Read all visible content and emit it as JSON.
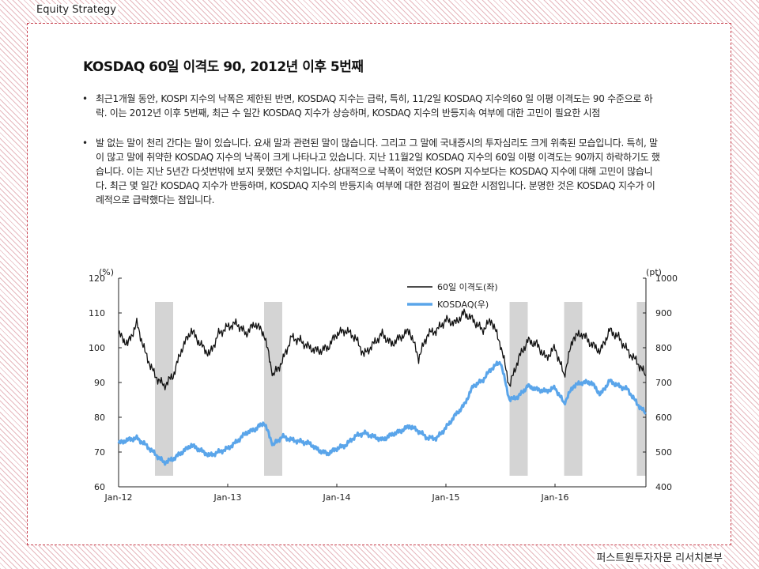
{
  "header": {
    "label": "Equity Strategy"
  },
  "slide": {
    "title": "KOSDAQ 60일 이격도 90, 2012년 이후 5번째",
    "bullets": [
      {
        "marker": "•",
        "text": "최근1개월 동안, KOSPI 지수의 낙폭은 제한된 반면, KOSDAQ 지수는 급락, 특히, 11/2일 KOSDAQ 지수의60 일 이평 이격도는 90 수준으로 하락. 이는 2012년 이후 5번째, 최근 수 일간 KOSDAQ 지수가 상승하며, KOSDAQ 지수의 반등지속 여부에 대한 고민이 필요한 시점"
      },
      {
        "marker": "•",
        "text": "발 없는 말이 천리 간다는 말이 있습니다. 요새 말과 관련된 말이 많습니다. 그리고 그 말에 국내증시의 투자심리도 크게 위축된 모습입니다. 특히, 말이 많고 말에 취약한 KOSDAQ 지수의 낙폭이 크게 나타나고 있습니다. 지난 11월2일 KOSDAQ 지수의 60일 이평 이격도는 90까지 하락하기도 했습니다. 이는 지난 5년간 다섯번밖에 보지 못했던 수치입니다. 상대적으로 낙폭이 적었던 KOSPI 지수보다는 KOSDAQ 지수에 대해 고민이 많습니다. 최근 몇 일간 KOSDAQ 지수가 반등하며, KOSDAQ 지수의 반등지속 여부에 대한 점검이 필요한 시점입니다. 분명한 것은 KOSDAQ 지수가 이례적으로 급락했다는 점입니다."
      }
    ]
  },
  "footer": {
    "label": "퍼스트원투자자문 리서치본부"
  },
  "chart_data": {
    "type": "line",
    "title": "",
    "left_unit": "(%)",
    "right_unit": "(pt)",
    "left_ylim": [
      60,
      120
    ],
    "right_ylim": [
      400,
      1000
    ],
    "left_ticks": [
      "60",
      "70",
      "80",
      "90",
      "100",
      "110",
      "120"
    ],
    "right_ticks": [
      "400",
      "500",
      "600",
      "700",
      "800",
      "900",
      "1000"
    ],
    "x_ticks": [
      "Jan-12",
      "Jan-13",
      "Jan-14",
      "Jan-15",
      "Jan-16"
    ],
    "x_tick_dates": [
      "2012-01",
      "2013-01",
      "2014-01",
      "2015-01",
      "2016-01"
    ],
    "x_range": [
      "2012-01",
      "2016-11"
    ],
    "legend_position": "top-center",
    "grid": false,
    "colors": {
      "disparity": "#111111",
      "kosdaq": "#5aa5ea",
      "shade": "#d4d4d4"
    },
    "shaded_periods": [
      {
        "start": "2012-05",
        "end": "2012-07"
      },
      {
        "start": "2013-05",
        "end": "2013-07"
      },
      {
        "start": "2015-08",
        "end": "2015-10"
      },
      {
        "start": "2016-02",
        "end": "2016-04"
      },
      {
        "start": "2016-10",
        "end": "2016-11"
      }
    ],
    "series": [
      {
        "name": "60일 이격도(좌)",
        "axis": "left",
        "points": [
          [
            "2012-01",
            104
          ],
          [
            "2012-02",
            101
          ],
          [
            "2012-03",
            107
          ],
          [
            "2012-04",
            98
          ],
          [
            "2012-05",
            92
          ],
          [
            "2012-06",
            89
          ],
          [
            "2012-07",
            92
          ],
          [
            "2012-08",
            100
          ],
          [
            "2012-09",
            105
          ],
          [
            "2012-10",
            101
          ],
          [
            "2012-11",
            98
          ],
          [
            "2012-12",
            104
          ],
          [
            "2013-01",
            106
          ],
          [
            "2013-02",
            107
          ],
          [
            "2013-03",
            104
          ],
          [
            "2013-04",
            107
          ],
          [
            "2013-05",
            104
          ],
          [
            "2013-06",
            92
          ],
          [
            "2013-07",
            96
          ],
          [
            "2013-08",
            103
          ],
          [
            "2013-09",
            102
          ],
          [
            "2013-10",
            100
          ],
          [
            "2013-11",
            99
          ],
          [
            "2013-12",
            100
          ],
          [
            "2014-01",
            104
          ],
          [
            "2014-02",
            105
          ],
          [
            "2014-03",
            103
          ],
          [
            "2014-04",
            98
          ],
          [
            "2014-05",
            101
          ],
          [
            "2014-06",
            104
          ],
          [
            "2014-07",
            101
          ],
          [
            "2014-08",
            103
          ],
          [
            "2014-09",
            105
          ],
          [
            "2014-10",
            97
          ],
          [
            "2014-11",
            104
          ],
          [
            "2014-12",
            105
          ],
          [
            "2015-01",
            108
          ],
          [
            "2015-02",
            107
          ],
          [
            "2015-03",
            110
          ],
          [
            "2015-04",
            108
          ],
          [
            "2015-05",
            105
          ],
          [
            "2015-06",
            108
          ],
          [
            "2015-07",
            101
          ],
          [
            "2015-08",
            89
          ],
          [
            "2015-09",
            97
          ],
          [
            "2015-10",
            102
          ],
          [
            "2015-11",
            101
          ],
          [
            "2015-12",
            97
          ],
          [
            "2016-01",
            100
          ],
          [
            "2016-02",
            92
          ],
          [
            "2016-03",
            103
          ],
          [
            "2016-04",
            104
          ],
          [
            "2016-05",
            101
          ],
          [
            "2016-06",
            99
          ],
          [
            "2016-07",
            105
          ],
          [
            "2016-08",
            103
          ],
          [
            "2016-09",
            99
          ],
          [
            "2016-10",
            96
          ],
          [
            "2016-11",
            92
          ]
        ]
      },
      {
        "name": "KOSDAQ(우)",
        "axis": "right",
        "points": [
          [
            "2012-01",
            525
          ],
          [
            "2012-02",
            535
          ],
          [
            "2012-03",
            540
          ],
          [
            "2012-04",
            520
          ],
          [
            "2012-05",
            495
          ],
          [
            "2012-06",
            470
          ],
          [
            "2012-07",
            480
          ],
          [
            "2012-08",
            500
          ],
          [
            "2012-09",
            520
          ],
          [
            "2012-10",
            505
          ],
          [
            "2012-11",
            490
          ],
          [
            "2012-12",
            500
          ],
          [
            "2013-01",
            510
          ],
          [
            "2013-02",
            530
          ],
          [
            "2013-03",
            555
          ],
          [
            "2013-04",
            565
          ],
          [
            "2013-05",
            585
          ],
          [
            "2013-06",
            520
          ],
          [
            "2013-07",
            545
          ],
          [
            "2013-08",
            535
          ],
          [
            "2013-09",
            530
          ],
          [
            "2013-10",
            525
          ],
          [
            "2013-11",
            505
          ],
          [
            "2013-12",
            495
          ],
          [
            "2014-01",
            510
          ],
          [
            "2014-02",
            520
          ],
          [
            "2014-03",
            545
          ],
          [
            "2014-04",
            555
          ],
          [
            "2014-05",
            545
          ],
          [
            "2014-06",
            535
          ],
          [
            "2014-07",
            550
          ],
          [
            "2014-08",
            560
          ],
          [
            "2014-09",
            575
          ],
          [
            "2014-10",
            560
          ],
          [
            "2014-11",
            540
          ],
          [
            "2014-12",
            540
          ],
          [
            "2015-01",
            570
          ],
          [
            "2015-02",
            605
          ],
          [
            "2015-03",
            635
          ],
          [
            "2015-04",
            690
          ],
          [
            "2015-05",
            705
          ],
          [
            "2015-06",
            740
          ],
          [
            "2015-07",
            760
          ],
          [
            "2015-08",
            650
          ],
          [
            "2015-09",
            660
          ],
          [
            "2015-10",
            690
          ],
          [
            "2015-11",
            680
          ],
          [
            "2015-12",
            675
          ],
          [
            "2016-01",
            685
          ],
          [
            "2016-02",
            640
          ],
          [
            "2016-03",
            690
          ],
          [
            "2016-04",
            700
          ],
          [
            "2016-05",
            700
          ],
          [
            "2016-06",
            665
          ],
          [
            "2016-07",
            705
          ],
          [
            "2016-08",
            690
          ],
          [
            "2016-09",
            680
          ],
          [
            "2016-10",
            640
          ],
          [
            "2016-11",
            610
          ]
        ]
      }
    ]
  }
}
